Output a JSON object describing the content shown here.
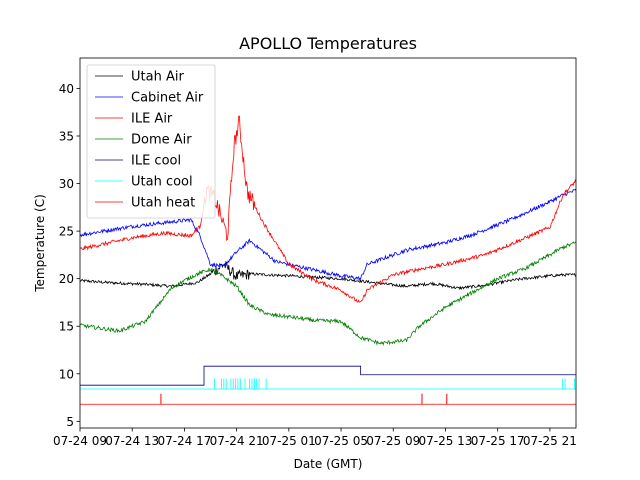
{
  "chart_data": {
    "type": "line",
    "title": "APOLLO Temperatures",
    "xlabel": "Date (GMT)",
    "ylabel": "Temperature (C)",
    "xlim": [
      0,
      38
    ],
    "ylim": [
      4.3,
      43.2
    ],
    "x_ticks": [
      {
        "x": 0,
        "label": "07-24 09"
      },
      {
        "x": 4,
        "label": "07-24 13"
      },
      {
        "x": 8,
        "label": "07-24 17"
      },
      {
        "x": 12,
        "label": "07-24 21"
      },
      {
        "x": 16,
        "label": "07-25 01"
      },
      {
        "x": 20,
        "label": "07-25 05"
      },
      {
        "x": 24,
        "label": "07-25 09"
      },
      {
        "x": 28,
        "label": "07-25 13"
      },
      {
        "x": 32,
        "label": "07-25 17"
      },
      {
        "x": 36,
        "label": "07-25 21"
      }
    ],
    "y_ticks": [
      5,
      10,
      15,
      20,
      25,
      30,
      35,
      40
    ],
    "legend_position": "top-left",
    "series": [
      {
        "name": "Utah Air",
        "color": "#000000",
        "noise": 0.15,
        "x": [
          0,
          2,
          5,
          7,
          9,
          10,
          11,
          12,
          13,
          16,
          20,
          23,
          25,
          27,
          29,
          31,
          33,
          34,
          36,
          37,
          38
        ],
        "y": [
          19.8,
          19.6,
          19.4,
          19.2,
          19.6,
          20.5,
          21.5,
          20.2,
          20.5,
          20.3,
          20.0,
          19.5,
          19.2,
          19.5,
          19.0,
          19.3,
          19.8,
          20.0,
          20.3,
          20.4,
          20.4
        ]
      },
      {
        "name": "Cabinet Air",
        "color": "#0000ff",
        "noise": 0.2,
        "x": [
          0,
          4,
          8.5,
          9.2,
          10,
          11,
          12,
          13,
          15,
          17,
          20,
          21.5,
          22,
          25,
          28,
          30,
          33,
          36,
          37,
          38
        ],
        "y": [
          24.6,
          25.5,
          26.2,
          24.5,
          21.5,
          21.3,
          22.8,
          24.0,
          21.8,
          21.2,
          20.3,
          20.0,
          21.5,
          23.0,
          23.8,
          24.6,
          26.2,
          28.1,
          28.8,
          29.3
        ]
      },
      {
        "name": "ILE Air",
        "color": "#ff0000",
        "noise": 0.2,
        "x": [
          0,
          4,
          6.5,
          8.5,
          9.2,
          9.7,
          10.3,
          11.3,
          11.8,
          12.2,
          12.8,
          14,
          16,
          18,
          20,
          21.5,
          22,
          24,
          26,
          28,
          31,
          34,
          36,
          37,
          38
        ],
        "y": [
          23.1,
          24.3,
          24.8,
          24.5,
          25.5,
          29.3,
          28.5,
          24.5,
          34.0,
          36.5,
          29.2,
          26.0,
          21.5,
          19.8,
          18.8,
          17.4,
          18.8,
          20.4,
          21.0,
          21.5,
          22.5,
          24.2,
          25.4,
          28.8,
          30.3
        ]
      },
      {
        "name": "Dome Air",
        "color": "#008000",
        "noise": 0.2,
        "x": [
          0,
          3,
          5,
          7,
          8,
          9,
          10,
          11,
          12,
          13,
          14.5,
          16,
          18,
          20,
          21.5,
          23,
          25,
          26,
          28,
          30,
          32,
          34,
          36,
          37,
          38
        ],
        "y": [
          15.1,
          14.5,
          15.5,
          19.0,
          19.8,
          20.5,
          21.0,
          20.2,
          19.2,
          17.2,
          16.2,
          16.0,
          15.6,
          15.5,
          13.8,
          13.2,
          13.5,
          15.0,
          17.0,
          18.5,
          20.0,
          21.0,
          22.5,
          23.3,
          23.8
        ]
      },
      {
        "name": "ILE cool",
        "color": "#00008b",
        "noise": 0,
        "x": [
          0,
          9.5,
          9.5,
          21.5,
          21.5,
          38
        ],
        "y": [
          8.8,
          8.8,
          10.8,
          10.8,
          9.9,
          9.9
        ]
      },
      {
        "name": "Utah cool",
        "color": "#00ffff",
        "noise": 0,
        "x": [
          0,
          38
        ],
        "y": [
          8.4,
          8.4
        ],
        "bursts": [
          [
            10.3,
            14.3
          ],
          [
            36.8,
            38
          ]
        ],
        "burst_top": 9.5
      },
      {
        "name": "Utah heat",
        "color": "#ff0000",
        "noise": 0,
        "x": [
          0,
          38
        ],
        "y": [
          6.8,
          6.8
        ],
        "spikes": [
          6.2,
          26.2,
          28.1
        ],
        "spike_top": 7.9
      }
    ]
  }
}
